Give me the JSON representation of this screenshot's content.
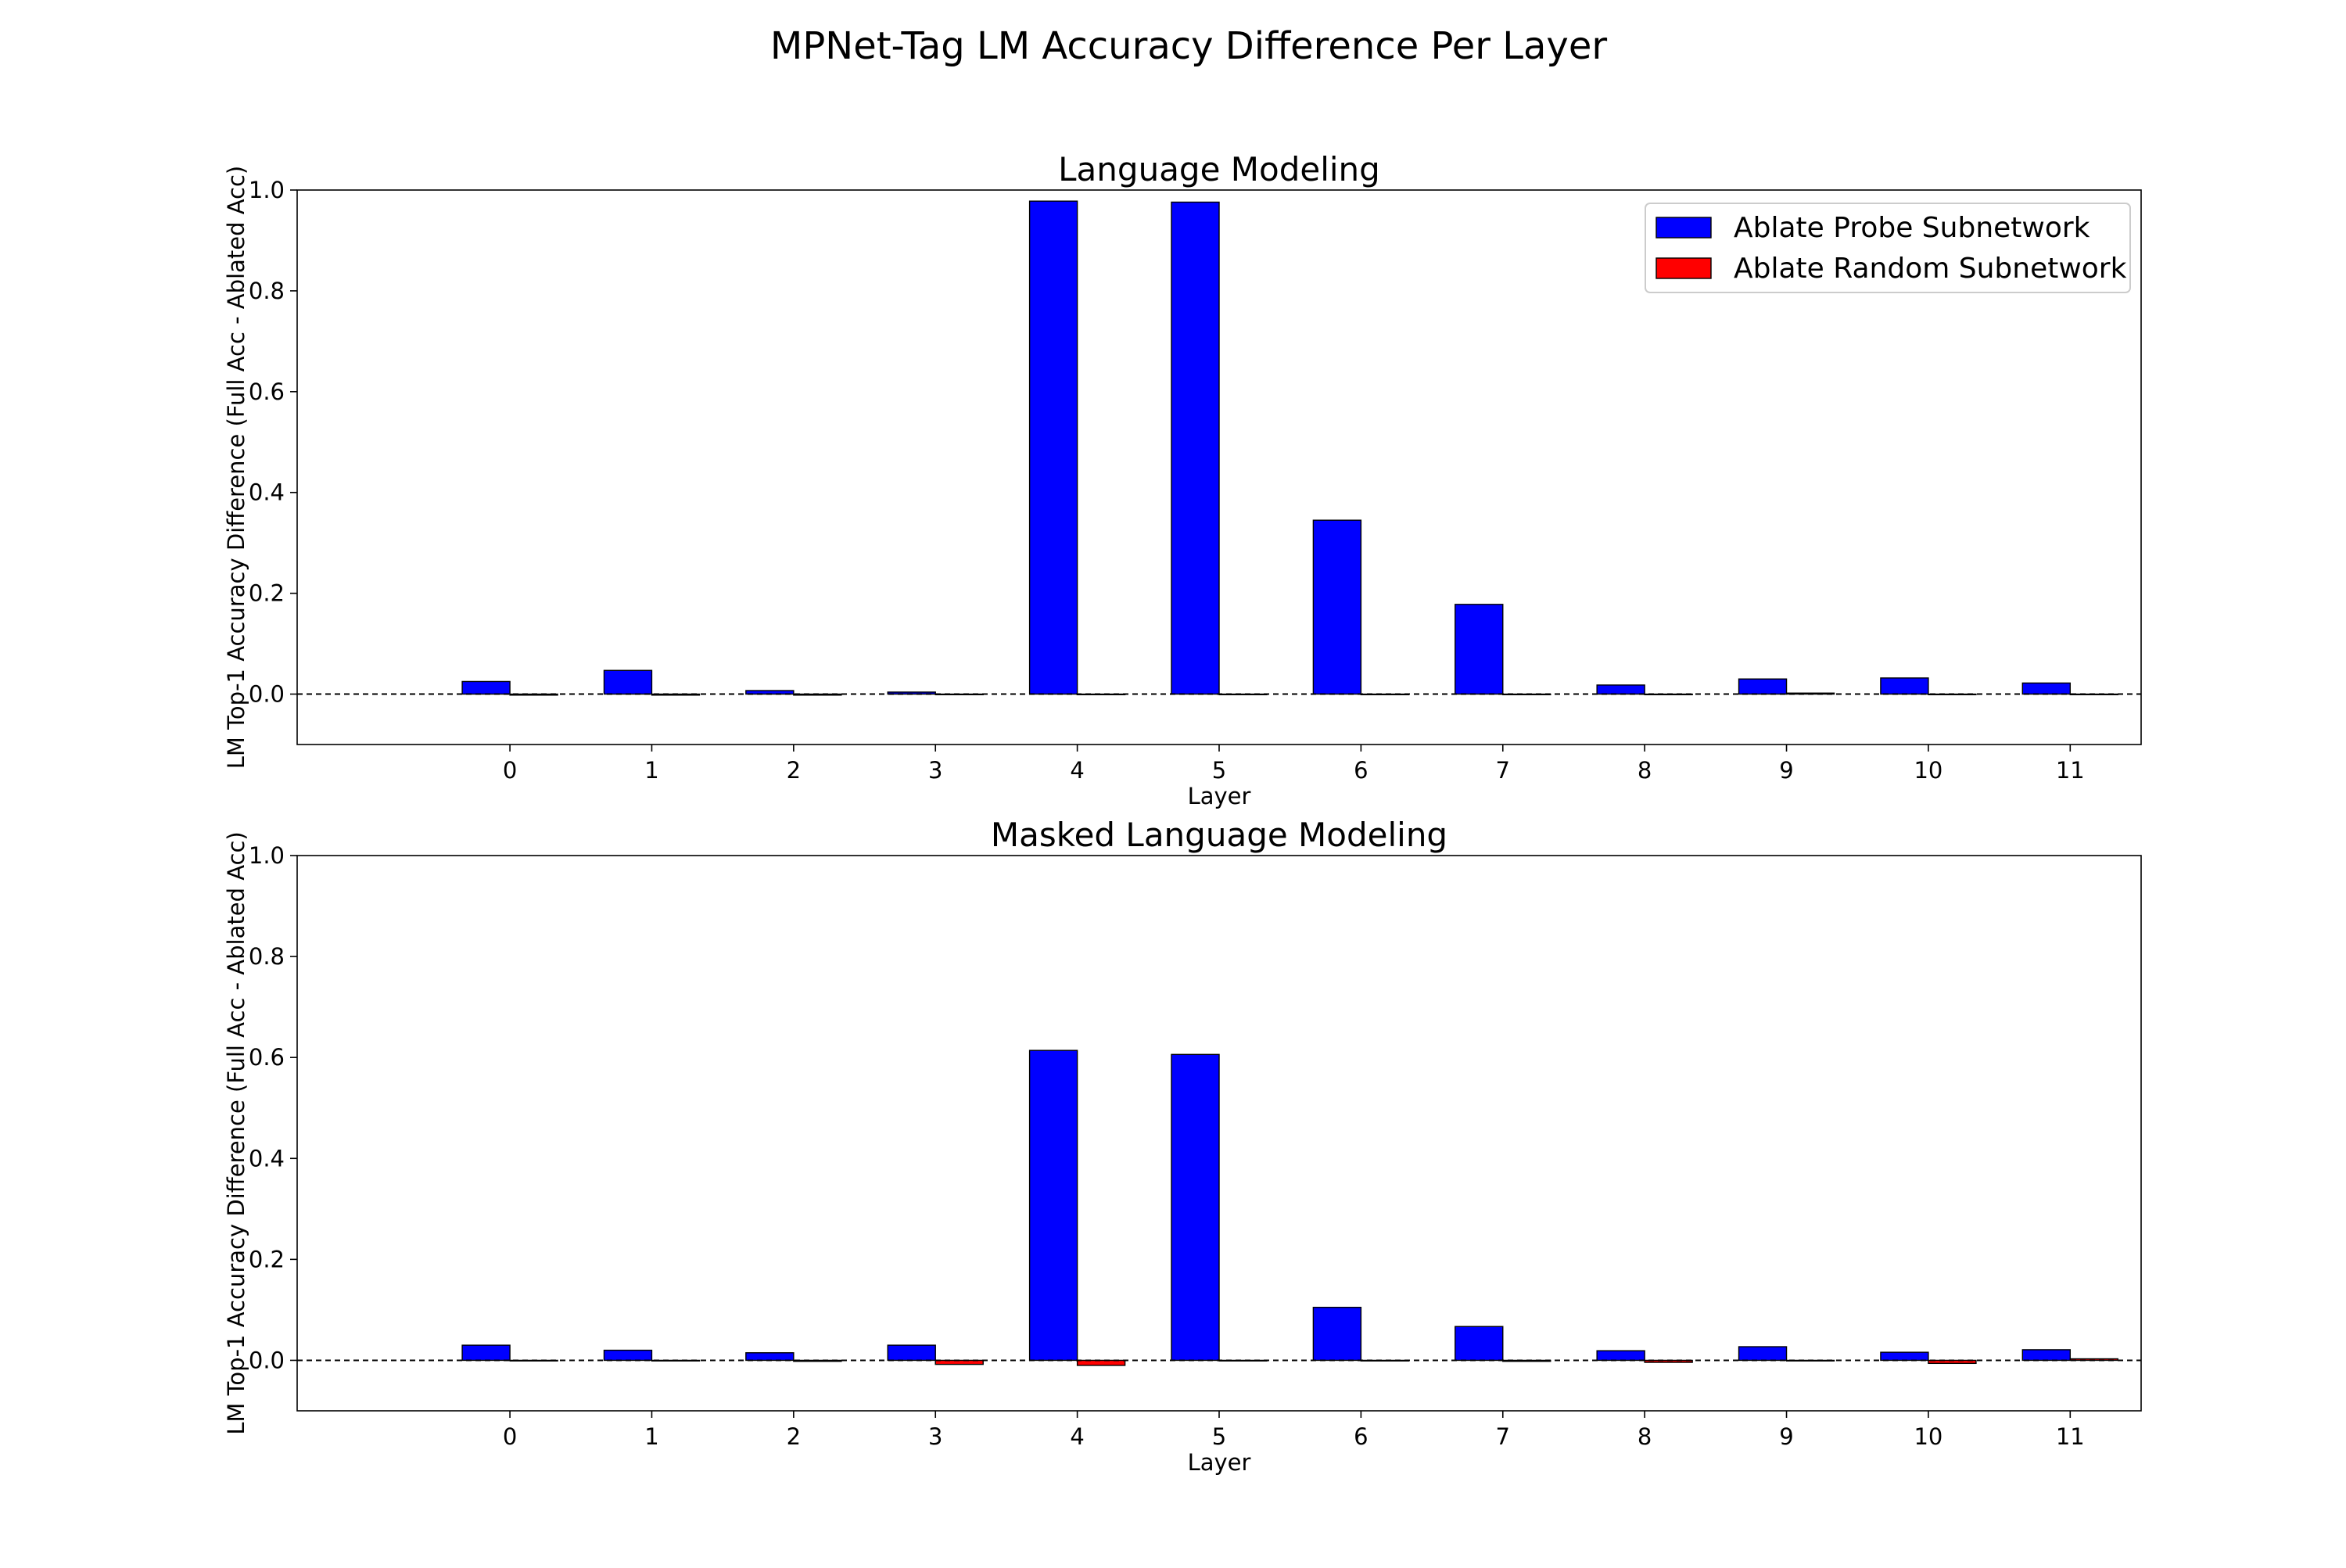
{
  "figure": {
    "title": "MPNet-Tag LM Accuracy Difference Per Layer"
  },
  "legend": {
    "items": [
      {
        "label": "Ablate Probe Subnetwork",
        "color": "#0000ff"
      },
      {
        "label": "Ablate Random Subnetwork",
        "color": "#ff0000"
      }
    ],
    "placement": "upper-right"
  },
  "chart_data": [
    {
      "type": "bar",
      "title": "Language Modeling",
      "xlabel": "Layer",
      "ylabel": "LM Top-1 Accuracy Difference (Full Acc - Ablated Acc)",
      "categories": [
        "0",
        "1",
        "2",
        "3",
        "4",
        "5",
        "6",
        "7",
        "8",
        "9",
        "10",
        "11"
      ],
      "ylim": [
        -0.1,
        1.0
      ],
      "yticks": [
        "0.0",
        "0.2",
        "0.4",
        "0.6",
        "0.8",
        "1.0"
      ],
      "reference_line": 0.0,
      "grid": false,
      "series": [
        {
          "name": "Ablate Probe Subnetwork",
          "color": "#0000ff",
          "values": [
            0.025,
            0.047,
            0.007,
            0.004,
            0.978,
            0.976,
            0.345,
            0.178,
            0.018,
            0.03,
            0.032,
            0.022
          ]
        },
        {
          "name": "Ablate Random Subnetwork",
          "color": "#ff0000",
          "values": [
            -0.002,
            -0.002,
            -0.002,
            0.0,
            0.0,
            0.0,
            0.0,
            -0.001,
            0.0,
            0.002,
            0.0,
            0.0
          ]
        }
      ]
    },
    {
      "type": "bar",
      "title": "Masked Language Modeling",
      "xlabel": "Layer",
      "ylabel": "LM Top-1 Accuracy Difference (Full Acc - Ablated Acc)",
      "categories": [
        "0",
        "1",
        "2",
        "3",
        "4",
        "5",
        "6",
        "7",
        "8",
        "9",
        "10",
        "11"
      ],
      "ylim": [
        -0.1,
        1.0
      ],
      "yticks": [
        "0.0",
        "0.2",
        "0.4",
        "0.6",
        "0.8",
        "1.0"
      ],
      "reference_line": 0.0,
      "grid": false,
      "series": [
        {
          "name": "Ablate Probe Subnetwork",
          "color": "#0000ff",
          "values": [
            0.03,
            0.02,
            0.015,
            0.03,
            0.614,
            0.606,
            0.105,
            0.067,
            0.019,
            0.027,
            0.016,
            0.021
          ]
        },
        {
          "name": "Ablate Random Subnetwork",
          "color": "#ff0000",
          "values": [
            0.0,
            -0.001,
            -0.002,
            -0.008,
            -0.01,
            0.0,
            0.0,
            -0.002,
            -0.004,
            0.0,
            -0.006,
            0.003
          ]
        }
      ]
    }
  ]
}
